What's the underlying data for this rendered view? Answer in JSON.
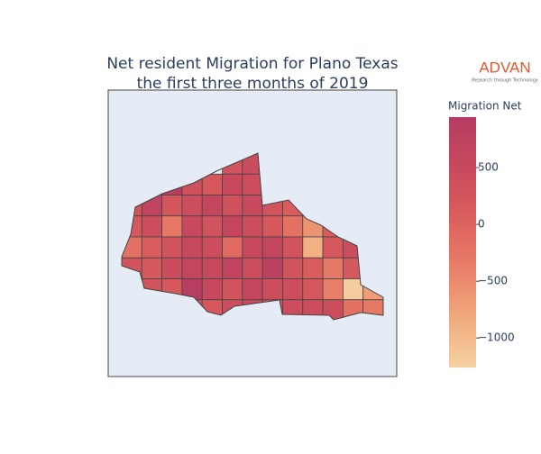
{
  "chart_data": {
    "type": "choropleth",
    "title": "Net resident Migration for Plano Texas",
    "subtitle": "the first three months of 2019",
    "logo": "ADVAN",
    "logo_tagline": "Research through Technology",
    "colorbar_title": "Migration Net",
    "colorscale": [
      "#f6d2a2",
      "#f0a97c",
      "#e87e68",
      "#db5f5d",
      "#c8495d",
      "#b53d62"
    ],
    "clim": [
      -1260,
      945
    ],
    "cticks": [
      {
        "value": 500,
        "label": "500"
      },
      0,
      {
        "value": -500,
        "label": "−500"
      },
      {
        "value": -1000,
        "label": "−1000"
      }
    ],
    "values": [
      300,
      450,
      900,
      350,
      200,
      500,
      400,
      300,
      700,
      250,
      400,
      600,
      350,
      500,
      300,
      100,
      200,
      200,
      400,
      -300,
      500,
      300,
      600,
      400,
      200,
      -200,
      -600,
      100,
      300,
      -200,
      100,
      300,
      500,
      400,
      -100,
      500,
      600,
      300,
      -900,
      200,
      400,
      300,
      200,
      450,
      600,
      500,
      700,
      400,
      800,
      300,
      100,
      -300,
      200,
      400,
      300,
      200,
      900,
      500,
      300,
      600,
      400,
      400,
      200,
      -400,
      -1200,
      -700,
      300,
      200,
      400,
      500,
      300,
      400,
      400,
      400,
      -200,
      -300
    ]
  }
}
